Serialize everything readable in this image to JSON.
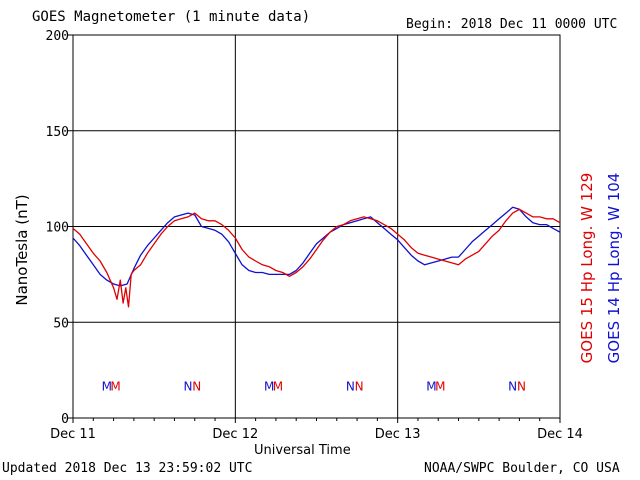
{
  "header": {
    "title": "GOES Magnetometer (1 minute data)",
    "begin": "Begin:  2018 Dec 11 0000 UTC"
  },
  "footer": {
    "updated": "Updated 2018 Dec 13 23:59:02 UTC",
    "credit": "NOAA/SWPC Boulder, CO USA"
  },
  "colors": {
    "goes15": "#e00000",
    "goes14": "#1010d0",
    "grid": "#000000"
  },
  "chart_data": {
    "type": "line",
    "title": "GOES Magnetometer (1 minute data)",
    "xlabel": "Universal Time",
    "ylabel": "NanoTesla (nT)",
    "xlim": [
      0,
      72
    ],
    "ylim": [
      0,
      200
    ],
    "yticks": [
      0,
      50,
      100,
      150,
      200
    ],
    "xticks": [
      {
        "x": 0,
        "label": "Dec 11"
      },
      {
        "x": 24,
        "label": "Dec 12"
      },
      {
        "x": 48,
        "label": "Dec 13"
      },
      {
        "x": 72,
        "label": "Dec 14"
      }
    ],
    "legend_position": "right",
    "series": [
      {
        "name": "GOES 15 Hp  Long. W 129",
        "color": "#e00000",
        "points": [
          [
            0,
            99
          ],
          [
            1,
            96
          ],
          [
            2,
            91
          ],
          [
            3,
            86
          ],
          [
            4,
            82
          ],
          [
            5,
            76
          ],
          [
            6,
            68
          ],
          [
            6.5,
            62
          ],
          [
            7,
            72
          ],
          [
            7.4,
            60
          ],
          [
            7.8,
            68
          ],
          [
            8.2,
            58
          ],
          [
            8.6,
            75
          ],
          [
            9,
            77
          ],
          [
            10,
            80
          ],
          [
            11,
            86
          ],
          [
            12,
            91
          ],
          [
            13,
            96
          ],
          [
            14,
            100
          ],
          [
            15,
            103
          ],
          [
            16,
            104
          ],
          [
            17,
            105
          ],
          [
            18,
            107
          ],
          [
            19,
            104
          ],
          [
            20,
            103
          ],
          [
            21,
            103
          ],
          [
            22,
            101
          ],
          [
            23,
            98
          ],
          [
            24,
            94
          ],
          [
            25,
            88
          ],
          [
            26,
            84
          ],
          [
            27,
            82
          ],
          [
            28,
            80
          ],
          [
            29,
            79
          ],
          [
            30,
            77
          ],
          [
            31,
            76
          ],
          [
            32,
            74
          ],
          [
            33,
            76
          ],
          [
            34,
            79
          ],
          [
            35,
            83
          ],
          [
            36,
            88
          ],
          [
            37,
            93
          ],
          [
            38,
            97
          ],
          [
            39,
            100
          ],
          [
            40,
            101
          ],
          [
            41,
            103
          ],
          [
            42,
            104
          ],
          [
            43,
            105
          ],
          [
            44,
            104
          ],
          [
            45,
            103
          ],
          [
            46,
            101
          ],
          [
            47,
            99
          ],
          [
            48,
            96
          ],
          [
            49,
            93
          ],
          [
            50,
            89
          ],
          [
            51,
            86
          ],
          [
            52,
            85
          ],
          [
            53,
            84
          ],
          [
            54,
            83
          ],
          [
            55,
            82
          ],
          [
            56,
            81
          ],
          [
            57,
            80
          ],
          [
            58,
            83
          ],
          [
            59,
            85
          ],
          [
            60,
            87
          ],
          [
            61,
            91
          ],
          [
            62,
            95
          ],
          [
            63,
            98
          ],
          [
            64,
            103
          ],
          [
            65,
            107
          ],
          [
            66,
            109
          ],
          [
            67,
            107
          ],
          [
            68,
            105
          ],
          [
            69,
            105
          ],
          [
            70,
            104
          ],
          [
            71,
            104
          ],
          [
            72,
            102
          ]
        ]
      },
      {
        "name": "GOES 14 Hp  Long. W 104",
        "color": "#1010d0",
        "points": [
          [
            0,
            94
          ],
          [
            1,
            90
          ],
          [
            2,
            85
          ],
          [
            3,
            80
          ],
          [
            4,
            75
          ],
          [
            5,
            72
          ],
          [
            6,
            70
          ],
          [
            7,
            69
          ],
          [
            8,
            70
          ],
          [
            9,
            78
          ],
          [
            10,
            85
          ],
          [
            11,
            90
          ],
          [
            12,
            94
          ],
          [
            13,
            98
          ],
          [
            14,
            102
          ],
          [
            15,
            105
          ],
          [
            16,
            106
          ],
          [
            17,
            107
          ],
          [
            18,
            106
          ],
          [
            19,
            100
          ],
          [
            20,
            99
          ],
          [
            21,
            98
          ],
          [
            22,
            96
          ],
          [
            23,
            92
          ],
          [
            24,
            86
          ],
          [
            25,
            80
          ],
          [
            26,
            77
          ],
          [
            27,
            76
          ],
          [
            28,
            76
          ],
          [
            29,
            75
          ],
          [
            30,
            75
          ],
          [
            31,
            75
          ],
          [
            32,
            75
          ],
          [
            33,
            77
          ],
          [
            34,
            81
          ],
          [
            35,
            86
          ],
          [
            36,
            91
          ],
          [
            37,
            94
          ],
          [
            38,
            97
          ],
          [
            39,
            99
          ],
          [
            40,
            101
          ],
          [
            41,
            102
          ],
          [
            42,
            103
          ],
          [
            43,
            104
          ],
          [
            44,
            105
          ],
          [
            45,
            102
          ],
          [
            46,
            99
          ],
          [
            47,
            96
          ],
          [
            48,
            93
          ],
          [
            49,
            89
          ],
          [
            50,
            85
          ],
          [
            51,
            82
          ],
          [
            52,
            80
          ],
          [
            53,
            81
          ],
          [
            54,
            82
          ],
          [
            55,
            83
          ],
          [
            56,
            84
          ],
          [
            57,
            84
          ],
          [
            58,
            88
          ],
          [
            59,
            92
          ],
          [
            60,
            95
          ],
          [
            61,
            98
          ],
          [
            62,
            101
          ],
          [
            63,
            104
          ],
          [
            64,
            107
          ],
          [
            65,
            110
          ],
          [
            66,
            109
          ],
          [
            67,
            105
          ],
          [
            68,
            102
          ],
          [
            69,
            101
          ],
          [
            70,
            101
          ],
          [
            71,
            99
          ],
          [
            72,
            97
          ]
        ]
      }
    ],
    "annotations": [
      {
        "x": 5,
        "text": "M",
        "series": "GOES 14 Hp  Long. W 104"
      },
      {
        "x": 6.3,
        "text": "M",
        "series": "GOES 15 Hp  Long. W 129"
      },
      {
        "x": 17,
        "text": "N",
        "series": "GOES 14 Hp  Long. W 104"
      },
      {
        "x": 18.3,
        "text": "N",
        "series": "GOES 15 Hp  Long. W 129"
      },
      {
        "x": 29,
        "text": "M",
        "series": "GOES 14 Hp  Long. W 104"
      },
      {
        "x": 30.3,
        "text": "M",
        "series": "GOES 15 Hp  Long. W 129"
      },
      {
        "x": 41,
        "text": "N",
        "series": "GOES 14 Hp  Long. W 104"
      },
      {
        "x": 42.3,
        "text": "N",
        "series": "GOES 15 Hp  Long. W 129"
      },
      {
        "x": 53,
        "text": "M",
        "series": "GOES 14 Hp  Long. W 104"
      },
      {
        "x": 54.3,
        "text": "M",
        "series": "GOES 15 Hp  Long. W 129"
      },
      {
        "x": 65,
        "text": "N",
        "series": "GOES 14 Hp  Long. W 104"
      },
      {
        "x": 66.3,
        "text": "N",
        "series": "GOES 15 Hp  Long. W 129"
      }
    ],
    "annotation_level": 17
  }
}
